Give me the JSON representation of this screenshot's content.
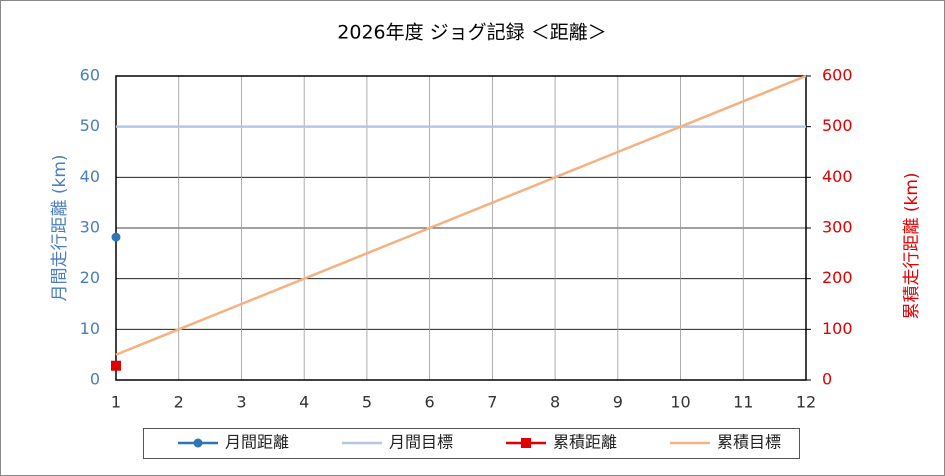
{
  "chart_data": {
    "type": "line",
    "title": "2026年度  ジョグ記録 ＜距離＞",
    "y_label": "月間走行距離 (km)",
    "y2_label": "累積走行距離 (km)",
    "x": [
      1,
      2,
      3,
      4,
      5,
      6,
      7,
      8,
      9,
      10,
      11,
      12
    ],
    "xlim": [
      1,
      12
    ],
    "xticks": [
      1,
      2,
      3,
      4,
      5,
      6,
      7,
      8,
      9,
      10,
      11,
      12
    ],
    "ylim": [
      0,
      60
    ],
    "yticks": [
      0,
      10,
      20,
      30,
      40,
      50,
      60
    ],
    "y2lim": [
      0,
      600
    ],
    "y2ticks": [
      0,
      100,
      200,
      300,
      400,
      500,
      600
    ],
    "y_color": "#4a7ebb",
    "y2_color": "#e00000",
    "grid": true,
    "legend": "bottom",
    "series": [
      {
        "name": "月間距離",
        "color": "#2e75b6",
        "marker": "circle",
        "values": [
          28.2,
          null,
          null,
          null,
          null,
          null,
          null,
          null,
          null,
          null,
          null,
          null
        ]
      },
      {
        "name": "月間目標",
        "color": "#b4c7e7",
        "values": [
          50,
          50,
          50,
          50,
          50,
          50,
          50,
          50,
          50,
          50,
          50,
          50
        ]
      },
      {
        "name": "累積距離",
        "color": "#e00000",
        "marker": "square",
        "axis": "y2",
        "values": [
          28.2,
          null,
          null,
          null,
          null,
          null,
          null,
          null,
          null,
          null,
          null,
          null
        ]
      },
      {
        "name": "累積目標",
        "color": "#f4b183",
        "axis": "y2",
        "values": [
          50,
          100,
          150,
          200,
          250,
          300,
          350,
          400,
          450,
          500,
          550,
          600
        ]
      }
    ]
  }
}
